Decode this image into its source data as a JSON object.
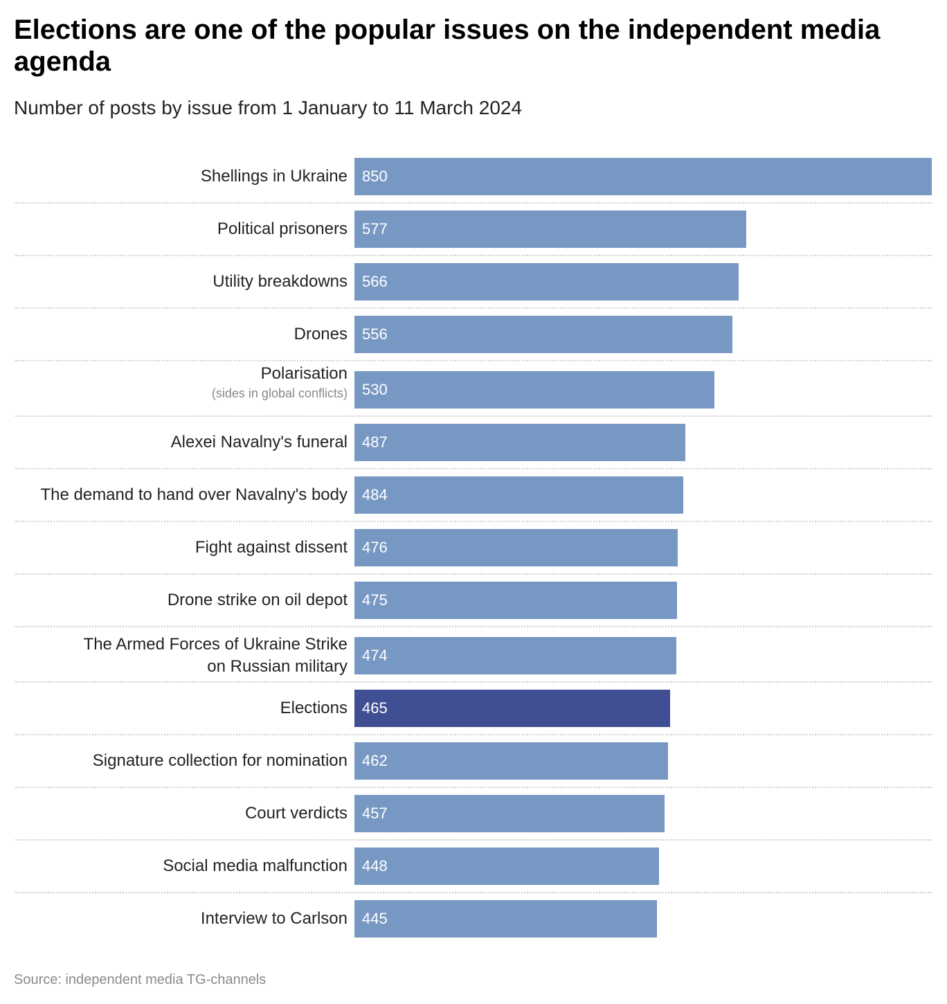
{
  "title": "Elections are one of the popular issues on the independent media agenda",
  "subtitle": "Number of posts by issue from 1 January to 11 March 2024",
  "source": "Source: independent media TG-channels",
  "colors": {
    "bar": "#7898c4",
    "highlight": "#404f93",
    "divider": "#cfcfcf"
  },
  "chart_data": {
    "type": "bar",
    "orientation": "horizontal",
    "title": "Elections are one of the popular issues on the independent media agenda",
    "subtitle": "Number of posts by issue from 1 January to 11 March 2024",
    "xlabel": "",
    "ylabel": "",
    "xlim": [
      0,
      850
    ],
    "grid": false,
    "highlighted_category": "Elections",
    "categories": [
      {
        "label": "Shellings in Ukraine",
        "note": "",
        "value": 850
      },
      {
        "label": "Political prisoners",
        "note": "",
        "value": 577
      },
      {
        "label": "Utility breakdowns",
        "note": "",
        "value": 566
      },
      {
        "label": "Drones",
        "note": "",
        "value": 556
      },
      {
        "label": "Polarisation",
        "note": "(sides in global conflicts)",
        "value": 530
      },
      {
        "label": "Alexei Navalny's funeral",
        "note": "",
        "value": 487
      },
      {
        "label": "The demand to hand over Navalny's body",
        "note": "",
        "value": 484
      },
      {
        "label": "Fight against dissent",
        "note": "",
        "value": 476
      },
      {
        "label": "Drone strike on oil depot",
        "note": "",
        "value": 475
      },
      {
        "label": "The Armed Forces of Ukraine Strike on Russian military",
        "note": "",
        "value": 474
      },
      {
        "label": "Elections",
        "note": "",
        "value": 465
      },
      {
        "label": "Signature collection for nomination",
        "note": "",
        "value": 462
      },
      {
        "label": "Court verdicts",
        "note": "",
        "value": 457
      },
      {
        "label": "Social media malfunction",
        "note": "",
        "value": 448
      },
      {
        "label": "Interview to Carlson",
        "note": "",
        "value": 445
      }
    ]
  }
}
